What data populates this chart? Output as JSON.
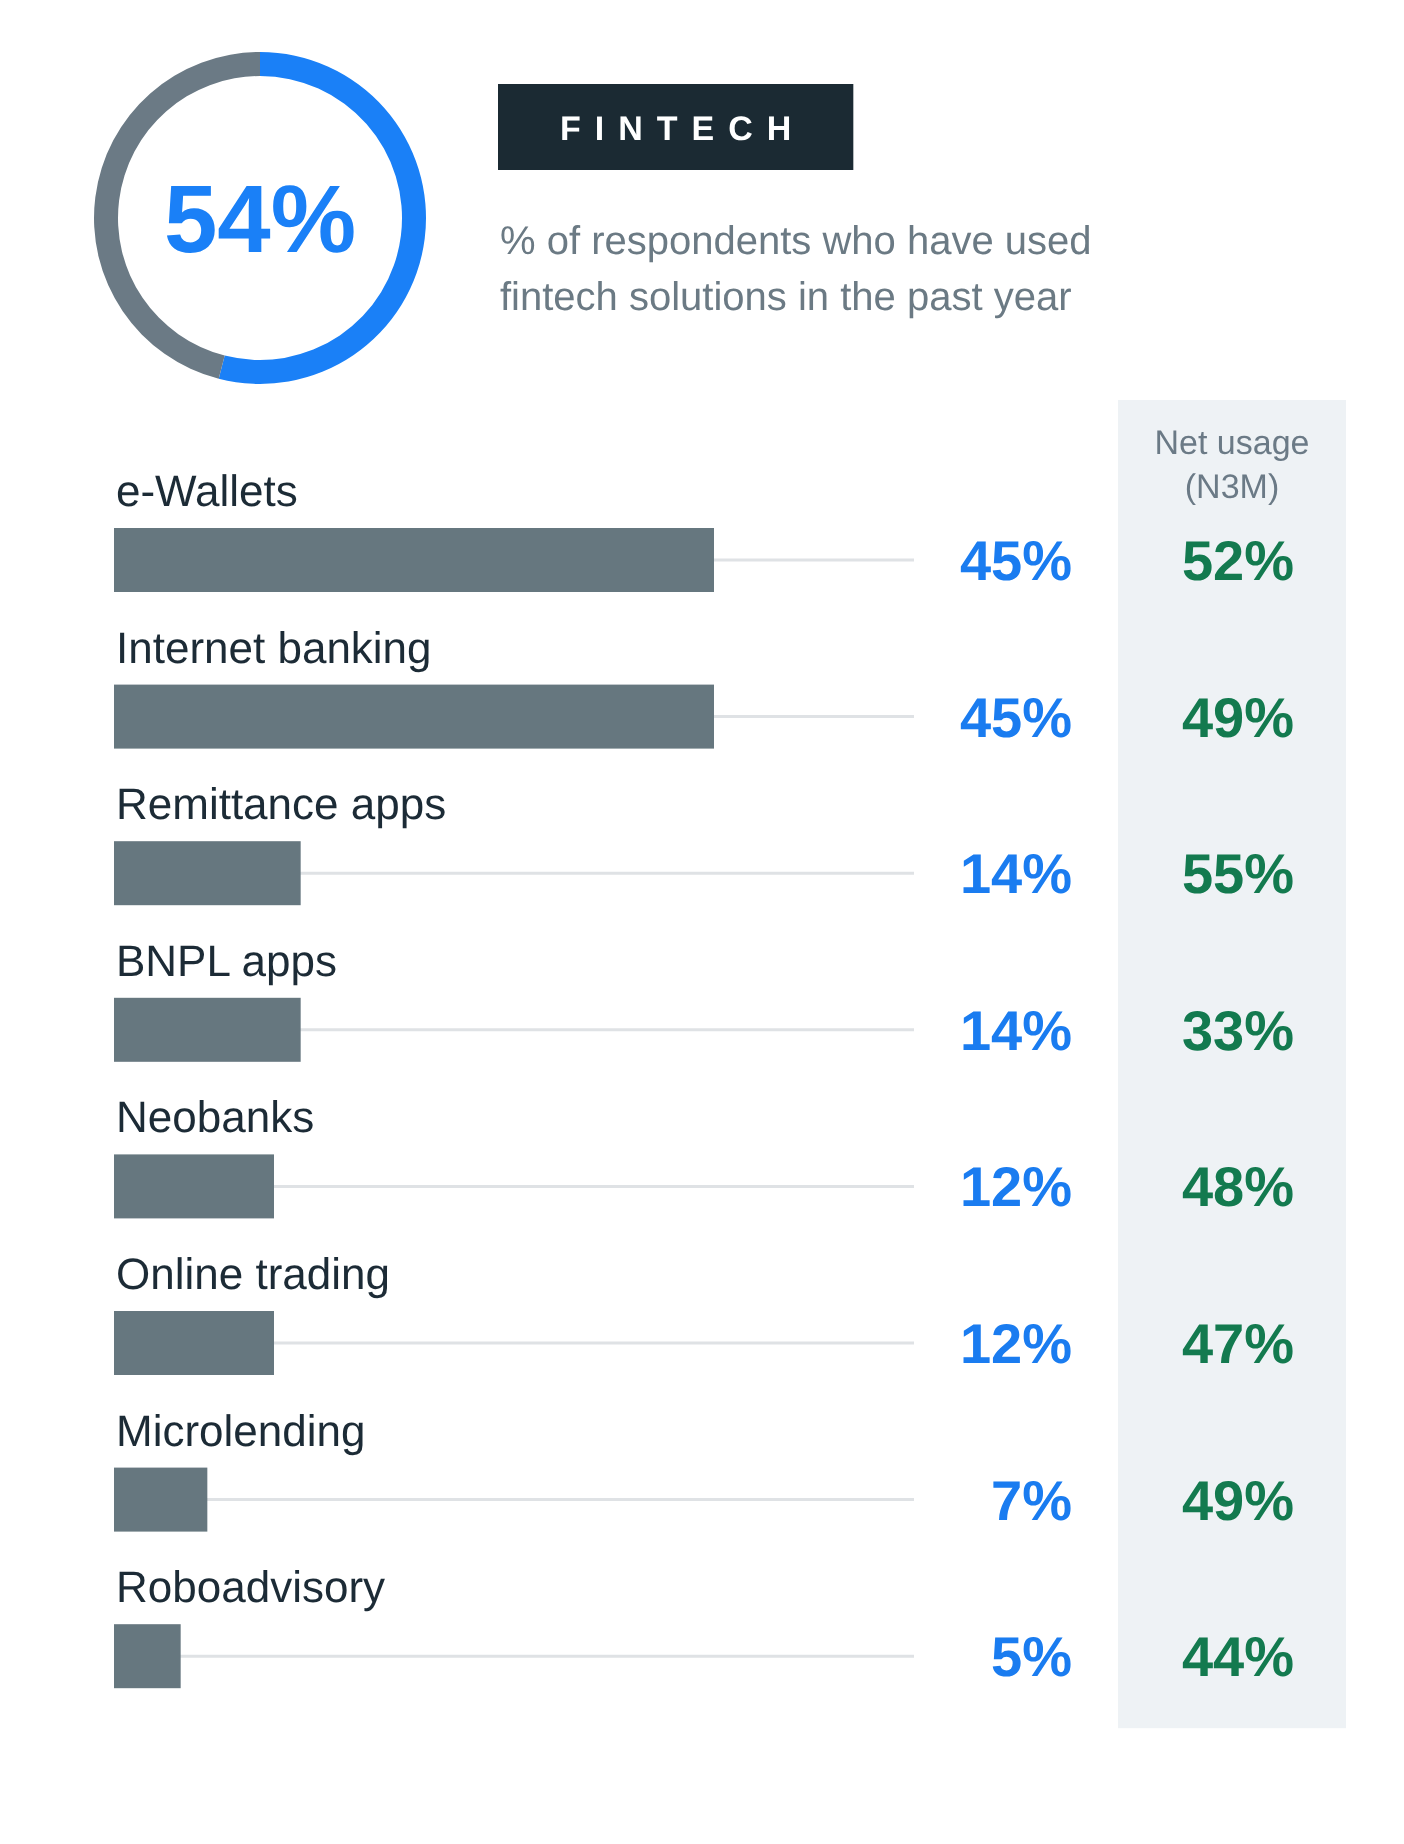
{
  "chart_data": [
    {
      "type": "donut",
      "title": "FINTECH",
      "subtitle": "% of respondents who have used fintech solutions in the past year",
      "categories": [
        null,
        null
      ],
      "values": [
        54,
        46
      ],
      "colors": [
        "#1a80f7",
        "#6b7a85"
      ],
      "value_labels": [
        "54%",
        null
      ]
    },
    {
      "type": "bar",
      "orientation": "horizontal",
      "categories": [
        "e-Wallets",
        "Internet banking",
        "Remittance apps",
        "BNPL apps",
        "Neobanks",
        "Online trading",
        "Microlending",
        "Roboadvisory"
      ],
      "values": [
        45,
        45,
        14,
        14,
        12,
        12,
        7,
        5
      ],
      "color": "#66777f",
      "value_labels": [
        "45%",
        "45%",
        "14%",
        "14%",
        "12%",
        "12%",
        "7%",
        "5%"
      ],
      "xlim": [
        0,
        60
      ],
      "tick_labels": "y"
    },
    {
      "type": "other",
      "title": "Net usage (N3M)",
      "categories": [
        null,
        null,
        null,
        null,
        null,
        null,
        null,
        null
      ],
      "values": [
        52,
        49,
        55,
        33,
        48,
        47,
        49,
        44
      ],
      "value_labels": [
        "52%",
        "49%",
        "55%",
        "33%",
        "48%",
        "47%",
        "49%",
        "44%"
      ]
    }
  ]
}
